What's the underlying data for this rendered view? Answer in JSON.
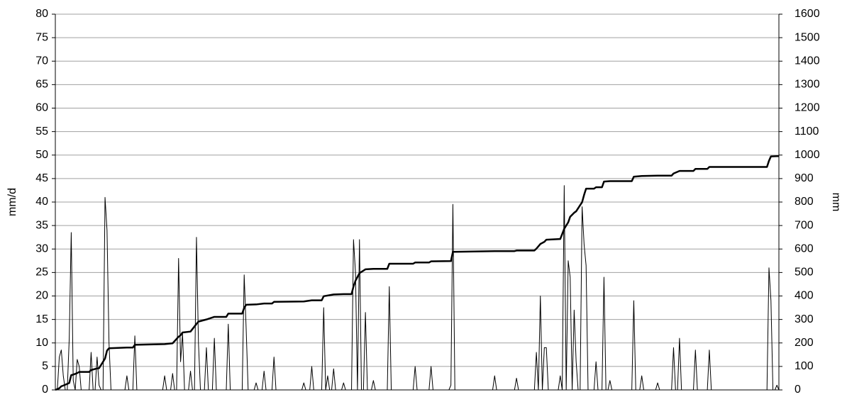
{
  "chart_data": {
    "type": "line",
    "ylabel": "mm/d",
    "y2label": "mm",
    "xlim": [
      0,
      364
    ],
    "ylim": [
      0,
      80
    ],
    "yticks": [
      0,
      5,
      10,
      15,
      20,
      25,
      30,
      35,
      40,
      45,
      50,
      55,
      60,
      65,
      70,
      75,
      80
    ],
    "y2lim": [
      0,
      1600
    ],
    "y2ticks": [
      0,
      100,
      200,
      300,
      400,
      500,
      600,
      700,
      800,
      900,
      1000,
      1100,
      1200,
      1300,
      1400,
      1500,
      1600
    ],
    "grid": true,
    "series": [
      {
        "color": "#000000",
        "line_width": 1,
        "values": [
          0,
          0,
          7,
          8.5,
          3,
          0,
          0,
          11,
          33.5,
          2,
          0,
          6.5,
          5,
          0,
          0,
          0,
          0,
          0,
          8,
          0,
          0,
          7,
          1,
          0,
          0,
          41,
          34,
          10,
          0,
          0,
          0,
          0,
          0,
          0,
          0,
          0,
          3,
          0,
          0,
          0,
          11.5,
          0,
          0,
          0,
          0,
          0,
          0,
          0,
          0,
          0,
          0,
          0,
          0,
          0,
          0,
          3,
          0,
          0,
          0,
          3.5,
          0,
          0,
          28,
          6,
          12,
          0,
          0,
          0,
          4,
          0,
          0,
          32.5,
          10,
          0,
          0,
          0,
          9,
          0,
          0,
          0,
          11,
          0,
          0,
          0,
          0,
          0,
          0,
          14,
          0,
          0,
          0,
          0,
          0,
          0,
          0,
          24.5,
          13,
          0,
          0,
          0,
          0,
          1.5,
          0,
          0,
          0,
          4,
          0,
          0,
          0,
          0,
          7,
          0,
          0,
          0,
          0,
          0,
          0,
          0,
          0,
          0,
          0,
          0,
          0,
          0,
          0,
          1.5,
          0,
          0,
          0,
          5,
          0,
          0,
          0,
          0,
          0,
          17.5,
          0,
          3,
          0,
          0,
          4.5,
          0,
          0,
          0,
          0,
          1.5,
          0,
          0,
          0,
          0,
          32,
          25,
          0,
          32,
          0,
          0,
          16.5,
          0,
          0,
          0,
          2,
          0,
          0,
          0,
          0,
          0,
          0,
          0,
          22,
          0,
          0,
          0,
          0,
          0,
          0,
          0,
          0,
          0,
          0,
          0,
          0,
          5,
          0,
          0,
          0,
          0,
          0,
          0,
          0,
          5,
          0,
          0,
          0,
          0,
          0,
          0,
          0,
          0,
          0,
          1,
          39.5,
          0,
          0,
          0,
          0,
          0,
          0,
          0,
          0,
          0,
          0,
          0,
          0,
          0,
          0,
          0,
          0,
          0,
          0,
          0,
          0,
          3,
          0,
          0,
          0,
          0,
          0,
          0,
          0,
          0,
          0,
          0,
          2.5,
          0,
          0,
          0,
          0,
          0,
          0,
          0,
          0,
          0,
          8,
          0,
          20,
          0,
          9,
          9,
          0,
          0,
          0,
          0,
          0,
          0,
          3,
          0,
          43.5,
          0,
          27.5,
          24,
          0,
          17,
          6,
          0,
          0,
          39,
          31,
          26.5,
          0,
          0,
          0,
          0,
          6,
          0,
          0,
          0,
          24,
          0,
          0,
          2,
          0,
          0,
          0,
          0,
          0,
          0,
          0,
          0,
          0,
          0,
          0,
          19,
          0,
          0,
          0,
          3,
          0,
          0,
          0,
          0,
          0,
          0,
          0,
          1.5,
          0,
          0,
          0,
          0,
          0,
          0,
          0,
          9,
          0,
          0,
          11,
          0,
          0,
          0,
          0,
          0,
          0,
          0,
          8.5,
          0,
          0,
          0,
          0,
          0,
          0,
          8.5,
          0,
          0,
          0,
          0,
          0,
          0,
          0,
          0,
          0,
          0,
          0,
          0,
          0,
          0,
          0,
          0,
          0,
          0,
          0,
          0,
          0,
          0,
          0,
          0,
          0,
          0,
          0,
          0,
          0,
          26,
          19,
          0,
          0,
          1,
          0
        ]
      },
      {
        "color": "#000000",
        "line_width": 2.5,
        "axis": "y2",
        "x": [
          0,
          2,
          3,
          4,
          7,
          8,
          9,
          11,
          12,
          17,
          18,
          21,
          22,
          25,
          26,
          27,
          36,
          39,
          40,
          55,
          59,
          62,
          63,
          64,
          68,
          71,
          72,
          76,
          80,
          86,
          87,
          94,
          95,
          96,
          101,
          105,
          109,
          110,
          125,
          129,
          134,
          135,
          137,
          140,
          145,
          149,
          150,
          151,
          153,
          156,
          160,
          167,
          168,
          180,
          181,
          188,
          189,
          199,
          200,
          221,
          231,
          232,
          241,
          242,
          244,
          246,
          247,
          254,
          256,
          258,
          259,
          261,
          262,
          265,
          266,
          267,
          271,
          272,
          275,
          276,
          279,
          290,
          291,
          295,
          303,
          310,
          311,
          314,
          321,
          322,
          328,
          329,
          358,
          359,
          360,
          363,
          364
        ],
        "values": [
          0,
          7,
          15.5,
          18.5,
          29.5,
          63,
          65,
          71.5,
          76.5,
          76.5,
          84.5,
          91.5,
          92.5,
          133.5,
          167.5,
          177.5,
          180.5,
          180.5,
          192,
          195,
          198.5,
          226.5,
          232.5,
          244.5,
          248.5,
          281,
          291,
          300,
          311,
          311,
          325,
          325,
          349.5,
          362.5,
          364,
          368,
          368,
          375,
          376.5,
          381.5,
          381.5,
          399,
          402,
          406.5,
          408,
          408,
          440,
          465,
          497,
          513.5,
          515.5,
          515.5,
          537.5,
          537.5,
          542.5,
          542.5,
          547.5,
          548.5,
          588,
          591,
          591,
          593.5,
          593.5,
          601.5,
          621.5,
          630.5,
          639.5,
          642.5,
          686,
          713.5,
          737.5,
          754.5,
          760.5,
          799.5,
          830.5,
          857,
          857,
          863,
          863,
          887,
          889,
          889,
          908,
          911,
          912.5,
          912.5,
          921.5,
          932.5,
          932.5,
          941,
          941,
          949.5,
          949.5,
          975.5,
          994.5,
          995.5,
          995.5
        ]
      }
    ]
  }
}
